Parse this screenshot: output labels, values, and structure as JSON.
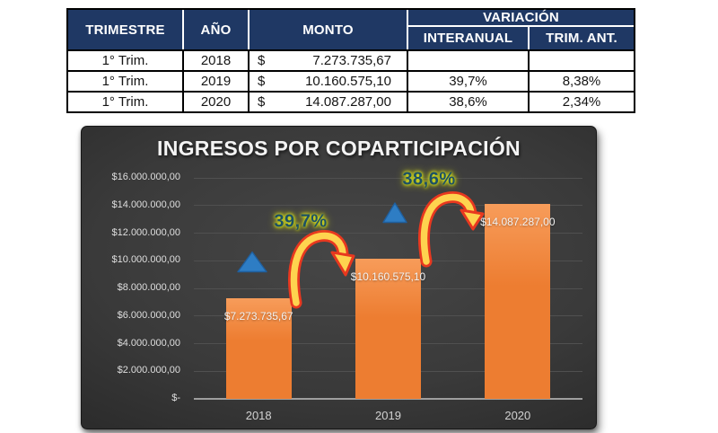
{
  "table": {
    "headers": {
      "trimestre": "TRIMESTRE",
      "anio": "AÑO",
      "monto": "MONTO",
      "variacion": "VARIACIÓN",
      "interanual": "INTERANUAL",
      "trim_ant": "TRIM. ANT."
    },
    "rows": [
      {
        "trimestre": "1° Trim.",
        "anio": "2018",
        "currency": "$",
        "monto": "7.273.735,67",
        "interanual": "",
        "trim_ant": ""
      },
      {
        "trimestre": "1° Trim.",
        "anio": "2019",
        "currency": "$",
        "monto": "10.160.575,10",
        "interanual": "39,7%",
        "trim_ant": "8,38%"
      },
      {
        "trimestre": "1° Trim.",
        "anio": "2020",
        "currency": "$",
        "monto": "14.087.287,00",
        "interanual": "38,6%",
        "trim_ant": "2,34%"
      }
    ],
    "header_bg": "#1F3864",
    "header_text_color": "#FFFFFF"
  },
  "chart_data": {
    "type": "bar",
    "title": "INGRESOS POR COPARTICIPACIÓN",
    "categories": [
      "2018",
      "2019",
      "2020"
    ],
    "values": [
      7273735.67,
      10160575.1,
      14087287.0
    ],
    "bar_labels": [
      "$7.273.735,67",
      "$10.160.575,10",
      "$14.087.287,00"
    ],
    "xlabel": "",
    "ylabel": "",
    "ylim": [
      0,
      16000000
    ],
    "ytick_step": 2000000,
    "yticklabels": [
      "$16.000.000,00",
      "$14.000.000,00",
      "$12.000.000,00",
      "$10.000.000,00",
      "$8.000.000,00",
      "$6.000.000,00",
      "$4.000.000,00",
      "$2.000.000,00",
      "$-"
    ],
    "grid": true,
    "legend": false,
    "annotations": [
      {
        "text": "39,7%",
        "type": "growth-callout",
        "between": [
          "2018",
          "2019"
        ]
      },
      {
        "text": "38,6%",
        "type": "growth-callout",
        "between": [
          "2019",
          "2020"
        ]
      }
    ],
    "markers": [
      "up-triangle",
      "up-triangle"
    ],
    "colors": {
      "bar": "#ED7D31",
      "bar_top": "#F79C5A",
      "background": "#3A3A3A",
      "gridline": "#505050",
      "axis_line": "#9E9E9E",
      "title": "#F4F4F4",
      "tick_label": "#DFDFDF",
      "bar_label": "#F2F2F2",
      "annotation_text": "#1D5165",
      "annotation_glow": "#D9E021",
      "arrow_fill": "#FED34F",
      "arrow_outline": "#E8381F",
      "triangle": "#2E7DC4"
    }
  }
}
